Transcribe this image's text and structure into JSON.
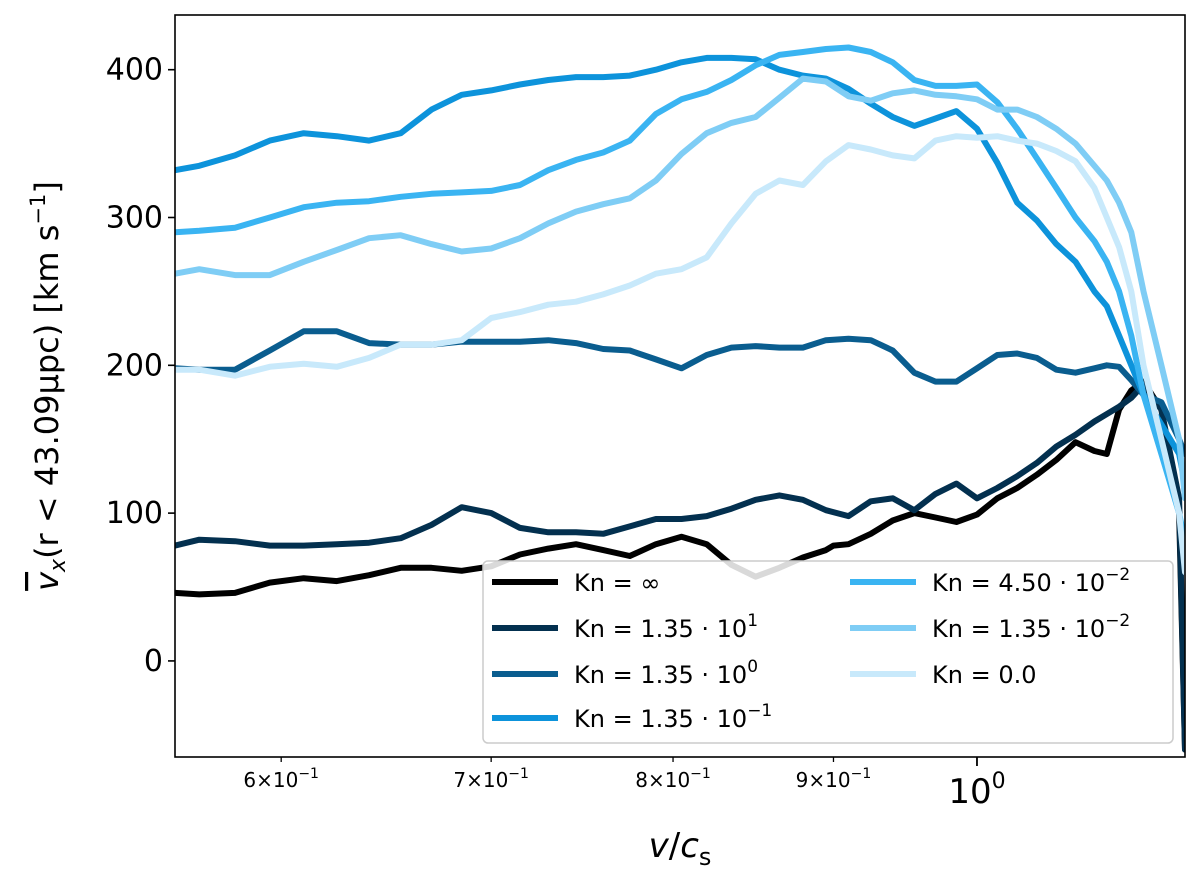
{
  "chart_data": {
    "type": "line",
    "title": "",
    "xscale": "log",
    "xlim": [
      0.555,
      1.165
    ],
    "ylim": [
      -65,
      437
    ],
    "xlabel_parts": {
      "v": "v",
      "slash": "/",
      "c": "c",
      "sub": "s"
    },
    "ylabel_parts": {
      "vx": "v",
      "sub": "x",
      "rest": "(r < 43.09μpc) [km s",
      "sup": "−1",
      "close": "]"
    },
    "yticks": [
      {
        "value": 0,
        "label": "0"
      },
      {
        "value": 100,
        "label": "100"
      },
      {
        "value": 200,
        "label": "200"
      },
      {
        "value": 300,
        "label": "300"
      },
      {
        "value": 400,
        "label": "400"
      }
    ],
    "xticks_minor": [
      {
        "value": 0.6,
        "base": "6×10",
        "exp": "−1"
      },
      {
        "value": 0.7,
        "base": "7×10",
        "exp": "−1"
      },
      {
        "value": 0.8,
        "base": "8×10",
        "exp": "−1"
      },
      {
        "value": 0.9,
        "base": "9×10",
        "exp": "−1"
      }
    ],
    "xticks_major": [
      {
        "value": 1.0,
        "base": "10",
        "exp": "0"
      }
    ],
    "legend": {
      "placement": "lower-right",
      "columns": 2
    },
    "series": [
      {
        "name": "Kn = ∞",
        "legend_base": "Kn = ∞",
        "legend_sup": "",
        "color": "#000000",
        "x": [
          0.555,
          0.565,
          0.58,
          0.595,
          0.61,
          0.625,
          0.64,
          0.655,
          0.67,
          0.685,
          0.7,
          0.715,
          0.73,
          0.745,
          0.76,
          0.775,
          0.79,
          0.805,
          0.82,
          0.835,
          0.85,
          0.865,
          0.88,
          0.895,
          0.9,
          0.91,
          0.925,
          0.94,
          0.955,
          0.97,
          0.985,
          1.0,
          1.015,
          1.03,
          1.045,
          1.06,
          1.075,
          1.09,
          1.1,
          1.11,
          1.12,
          1.13,
          1.145,
          1.16,
          1.165
        ],
        "y": [
          46,
          45,
          46,
          53,
          56,
          54,
          58,
          63,
          63,
          61,
          64,
          72,
          76,
          79,
          75,
          71,
          79,
          84,
          79,
          65,
          57,
          63,
          70,
          75,
          78,
          79,
          86,
          95,
          100,
          97,
          94,
          99,
          110,
          117,
          126,
          136,
          148,
          142,
          140,
          170,
          183,
          189,
          170,
          100,
          -60
        ]
      },
      {
        "name": "Kn = 1.35·10^1",
        "legend_base": "Kn = 1.35 · 10",
        "legend_sup": "1",
        "color": "#03304f",
        "x": [
          0.555,
          0.565,
          0.58,
          0.595,
          0.61,
          0.625,
          0.64,
          0.655,
          0.67,
          0.685,
          0.7,
          0.715,
          0.73,
          0.745,
          0.76,
          0.775,
          0.79,
          0.805,
          0.82,
          0.835,
          0.85,
          0.865,
          0.88,
          0.895,
          0.91,
          0.925,
          0.94,
          0.955,
          0.97,
          0.985,
          1.0,
          1.015,
          1.03,
          1.045,
          1.06,
          1.075,
          1.09,
          1.1,
          1.11,
          1.12,
          1.13,
          1.145,
          1.16,
          1.165
        ],
        "y": [
          78,
          82,
          81,
          78,
          78,
          79,
          80,
          83,
          92,
          104,
          100,
          90,
          87,
          87,
          86,
          91,
          96,
          96,
          98,
          103,
          109,
          112,
          109,
          102,
          98,
          108,
          110,
          102,
          113,
          120,
          110,
          117,
          125,
          134,
          145,
          153,
          162,
          167,
          172,
          178,
          187,
          170,
          110,
          -60
        ]
      },
      {
        "name": "Kn = 1.35·10^0",
        "legend_base": "Kn = 1.35 · 10",
        "legend_sup": "0",
        "color": "#0a5d8f",
        "x": [
          0.555,
          0.565,
          0.58,
          0.595,
          0.61,
          0.625,
          0.64,
          0.655,
          0.67,
          0.685,
          0.7,
          0.715,
          0.73,
          0.745,
          0.76,
          0.775,
          0.79,
          0.805,
          0.82,
          0.835,
          0.85,
          0.865,
          0.88,
          0.895,
          0.91,
          0.925,
          0.94,
          0.955,
          0.97,
          0.985,
          1.0,
          1.015,
          1.03,
          1.045,
          1.06,
          1.075,
          1.09,
          1.1,
          1.11,
          1.12,
          1.13,
          1.145,
          1.16,
          1.165
        ],
        "y": [
          198,
          197,
          197,
          210,
          223,
          223,
          215,
          214,
          214,
          216,
          216,
          216,
          217,
          215,
          211,
          210,
          204,
          198,
          207,
          212,
          213,
          212,
          212,
          217,
          218,
          217,
          210,
          195,
          189,
          189,
          198,
          207,
          208,
          205,
          197,
          195,
          198,
          200,
          199,
          190,
          180,
          175,
          150,
          140
        ]
      },
      {
        "name": "Kn = 1.35·10^-1",
        "legend_base": "Kn = 1.35 · 10",
        "legend_sup": "−1",
        "color": "#0d93db",
        "x": [
          0.555,
          0.565,
          0.58,
          0.595,
          0.61,
          0.625,
          0.64,
          0.655,
          0.67,
          0.685,
          0.7,
          0.715,
          0.73,
          0.745,
          0.76,
          0.775,
          0.79,
          0.805,
          0.82,
          0.835,
          0.85,
          0.865,
          0.88,
          0.895,
          0.91,
          0.925,
          0.94,
          0.955,
          0.97,
          0.985,
          1.0,
          1.015,
          1.03,
          1.045,
          1.06,
          1.075,
          1.09,
          1.1,
          1.11,
          1.12,
          1.13,
          1.145,
          1.16,
          1.165
        ],
        "y": [
          332,
          335,
          342,
          352,
          357,
          355,
          352,
          357,
          373,
          383,
          386,
          390,
          393,
          395,
          395,
          396,
          400,
          405,
          408,
          408,
          407,
          400,
          396,
          394,
          387,
          377,
          368,
          362,
          367,
          372,
          360,
          337,
          310,
          298,
          282,
          270,
          250,
          240,
          220,
          200,
          180,
          160,
          140,
          120
        ]
      },
      {
        "name": "Kn = 4.50·10^-2",
        "legend_base": "Kn = 4.50 · 10",
        "legend_sup": "−2",
        "color": "#3ab4f2",
        "x": [
          0.555,
          0.565,
          0.58,
          0.595,
          0.61,
          0.625,
          0.64,
          0.655,
          0.67,
          0.685,
          0.7,
          0.715,
          0.73,
          0.745,
          0.76,
          0.775,
          0.79,
          0.805,
          0.82,
          0.835,
          0.85,
          0.865,
          0.88,
          0.895,
          0.91,
          0.925,
          0.94,
          0.955,
          0.97,
          0.985,
          1.0,
          1.015,
          1.03,
          1.045,
          1.06,
          1.075,
          1.09,
          1.1,
          1.11,
          1.12,
          1.13,
          1.145,
          1.16,
          1.165
        ],
        "y": [
          290,
          291,
          293,
          300,
          307,
          310,
          311,
          314,
          316,
          317,
          318,
          322,
          332,
          339,
          344,
          352,
          370,
          380,
          385,
          393,
          403,
          410,
          412,
          414,
          415,
          412,
          405,
          393,
          389,
          389,
          390,
          378,
          360,
          340,
          320,
          300,
          284,
          270,
          250,
          220,
          180,
          140,
          100,
          80
        ]
      },
      {
        "name": "Kn = 1.35·10^-2",
        "legend_base": "Kn = 1.35 · 10",
        "legend_sup": "−2",
        "color": "#7fcdf5",
        "x": [
          0.555,
          0.565,
          0.58,
          0.595,
          0.61,
          0.625,
          0.64,
          0.655,
          0.67,
          0.685,
          0.7,
          0.715,
          0.73,
          0.745,
          0.76,
          0.775,
          0.79,
          0.805,
          0.82,
          0.835,
          0.85,
          0.865,
          0.88,
          0.895,
          0.91,
          0.925,
          0.94,
          0.955,
          0.97,
          0.985,
          1.0,
          1.015,
          1.03,
          1.045,
          1.06,
          1.075,
          1.09,
          1.1,
          1.11,
          1.12,
          1.13,
          1.145,
          1.16,
          1.165
        ],
        "y": [
          262,
          265,
          261,
          261,
          270,
          278,
          286,
          288,
          282,
          277,
          279,
          286,
          296,
          304,
          309,
          313,
          325,
          343,
          357,
          364,
          368,
          381,
          394,
          392,
          382,
          379,
          384,
          386,
          383,
          382,
          380,
          373,
          373,
          368,
          360,
          350,
          335,
          325,
          310,
          290,
          250,
          200,
          150,
          110
        ]
      },
      {
        "name": "Kn = 0.0",
        "legend_base": "Kn = 0.0",
        "legend_sup": "",
        "color": "#c8e9fb",
        "x": [
          0.555,
          0.565,
          0.58,
          0.595,
          0.61,
          0.625,
          0.64,
          0.655,
          0.67,
          0.685,
          0.7,
          0.715,
          0.73,
          0.745,
          0.76,
          0.775,
          0.79,
          0.805,
          0.82,
          0.835,
          0.85,
          0.865,
          0.88,
          0.895,
          0.91,
          0.925,
          0.94,
          0.955,
          0.97,
          0.985,
          1.0,
          1.015,
          1.03,
          1.045,
          1.06,
          1.075,
          1.09,
          1.1,
          1.11,
          1.12,
          1.13,
          1.145,
          1.16,
          1.165
        ],
        "y": [
          197,
          197,
          193,
          199,
          201,
          199,
          205,
          214,
          214,
          217,
          232,
          236,
          241,
          243,
          248,
          254,
          262,
          265,
          273,
          296,
          316,
          325,
          322,
          338,
          349,
          346,
          342,
          340,
          352,
          355,
          354,
          355,
          352,
          350,
          345,
          338,
          320,
          300,
          280,
          250,
          200,
          150,
          100,
          60
        ]
      }
    ]
  }
}
